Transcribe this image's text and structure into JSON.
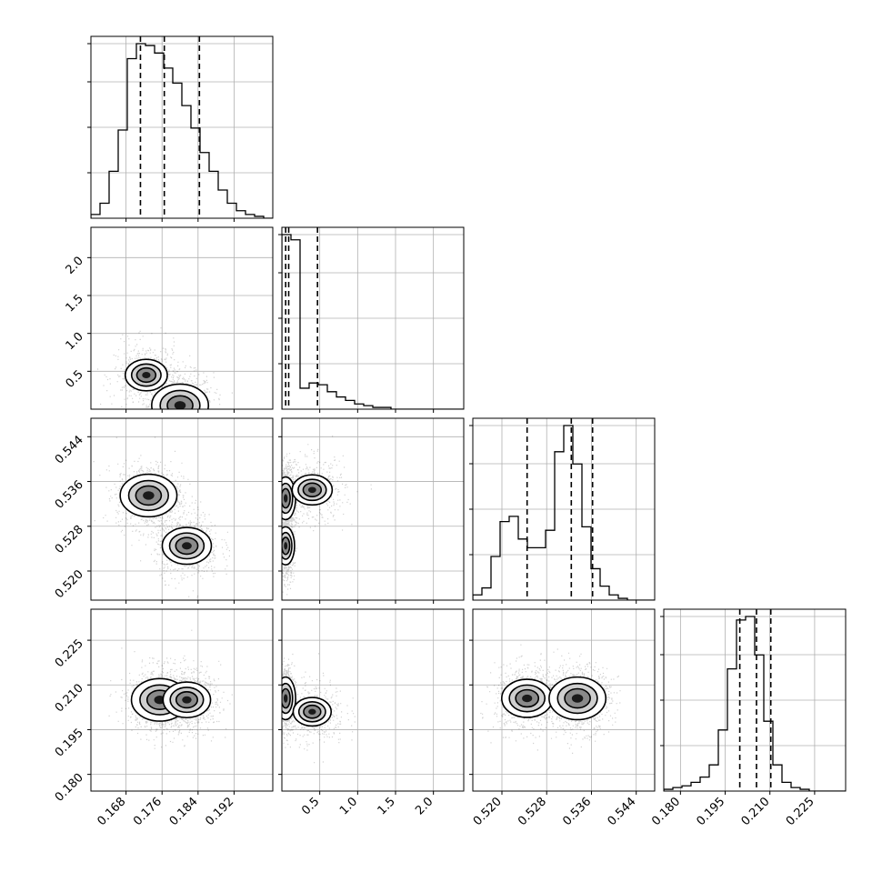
{
  "chart_data": {
    "type": "corner",
    "parameters": 4,
    "grid": true,
    "ticks": {
      "x": [
        [
          "0.168",
          "0.176",
          "0.184",
          "0.192"
        ],
        [
          "0.5",
          "1.0",
          "1.5",
          "2.0"
        ],
        [
          "0.520",
          "0.528",
          "0.536",
          "0.544"
        ],
        [
          "0.180",
          "0.195",
          "0.210",
          "0.225"
        ]
      ],
      "y": [
        [],
        [
          "0.5",
          "1.0",
          "1.5",
          "2.0"
        ],
        [
          "0.520",
          "0.528",
          "0.536",
          "0.544"
        ],
        [
          "0.180",
          "0.195",
          "0.210",
          "0.225"
        ]
      ]
    },
    "tick_values": [
      [
        0.168,
        0.176,
        0.184,
        0.192
      ],
      [
        0.5,
        1.0,
        1.5,
        2.0
      ],
      [
        0.52,
        0.528,
        0.536,
        0.544
      ],
      [
        0.18,
        0.195,
        0.21,
        0.225
      ]
    ],
    "ranges": [
      [
        0.1602,
        0.2006
      ],
      [
        0.0,
        2.4
      ],
      [
        0.5148,
        0.5473
      ],
      [
        0.1744,
        0.2354
      ]
    ],
    "histograms": [
      {
        "param": 0,
        "counts": [
          2,
          8,
          25,
          47,
          85,
          93,
          92,
          88,
          80,
          72,
          60,
          48,
          35,
          25,
          15,
          8,
          4,
          2,
          1,
          0
        ],
        "quantiles": [
          0.1712,
          0.1765,
          0.1843
        ]
      },
      {
        "param": 1,
        "counts": [
          100,
          97,
          12,
          15,
          14,
          10,
          7,
          5,
          3,
          2,
          1,
          1,
          0,
          0,
          0,
          0,
          0,
          0,
          0,
          0
        ],
        "quantiles": [
          0.05,
          0.09,
          0.47
        ]
      },
      {
        "param": 2,
        "counts": [
          3,
          7,
          25,
          45,
          48,
          35,
          30,
          30,
          40,
          85,
          100,
          78,
          42,
          18,
          8,
          3,
          1,
          0,
          0,
          0
        ],
        "quantiles": [
          0.5245,
          0.5324,
          0.5362
        ]
      },
      {
        "param": 3,
        "counts": [
          1,
          2,
          3,
          5,
          8,
          15,
          35,
          70,
          98,
          100,
          78,
          40,
          15,
          5,
          2,
          1,
          0,
          0,
          0,
          0
        ],
        "quantiles": [
          0.1999,
          0.2055,
          0.2103
        ]
      }
    ],
    "density_peaks": [
      {
        "x_param": 0,
        "y_param": 1,
        "x": 0.18,
        "y": 0.05,
        "level": 1.0
      },
      {
        "x_param": 0,
        "y_param": 1,
        "x": 0.1725,
        "y": 0.45,
        "level": 0.55
      },
      {
        "x_param": 0,
        "y_param": 2,
        "x": 0.173,
        "y": 0.5335,
        "level": 1.0
      },
      {
        "x_param": 0,
        "y_param": 2,
        "x": 0.1815,
        "y": 0.5245,
        "level": 0.75
      },
      {
        "x_param": 1,
        "y_param": 2,
        "x": 0.05,
        "y": 0.533,
        "level": 1.0
      },
      {
        "x_param": 1,
        "y_param": 2,
        "x": 0.05,
        "y": 0.5245,
        "level": 0.8
      },
      {
        "x_param": 1,
        "y_param": 2,
        "x": 0.4,
        "y": 0.5345,
        "level": 0.5
      },
      {
        "x_param": 0,
        "y_param": 3,
        "x": 0.1755,
        "y": 0.205,
        "level": 1.0
      },
      {
        "x_param": 0,
        "y_param": 3,
        "x": 0.1815,
        "y": 0.205,
        "level": 0.7
      },
      {
        "x_param": 1,
        "y_param": 3,
        "x": 0.05,
        "y": 0.2055,
        "level": 1.0
      },
      {
        "x_param": 1,
        "y_param": 3,
        "x": 0.4,
        "y": 0.201,
        "level": 0.45
      },
      {
        "x_param": 2,
        "y_param": 3,
        "x": 0.5245,
        "y": 0.2055,
        "level": 0.8
      },
      {
        "x_param": 2,
        "y_param": 3,
        "x": 0.5335,
        "y": 0.2055,
        "level": 1.0
      }
    ]
  }
}
